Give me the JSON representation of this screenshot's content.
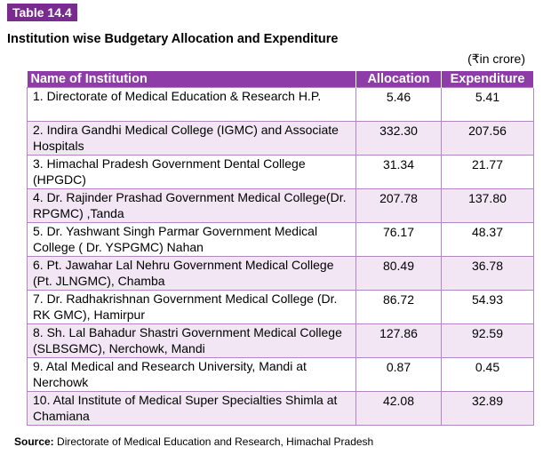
{
  "tag": "Table 14.4",
  "title": "Institution wise Budgetary Allocation and Expenditure",
  "unit": "(₹in crore)",
  "headers": [
    "Name of Institution",
    "Allocation",
    "Expenditure"
  ],
  "rows": [
    {
      "name": "1. Directorate of Medical Education & Research H.P.",
      "allocation": "5.46",
      "expenditure": "5.41"
    },
    {
      "name": "2. Indira Gandhi Medical College (IGMC) and Associate Hospitals",
      "allocation": "332.30",
      "expenditure": "207.56"
    },
    {
      "name": "3. Himachal Pradesh Government Dental College (HPGDC)",
      "allocation": "31.34",
      "expenditure": "21.77"
    },
    {
      "name": "4. Dr. Rajinder Prashad Government Medical College(Dr. RPGMC) ,Tanda",
      "allocation": "207.78",
      "expenditure": "137.80"
    },
    {
      "name": "5. Dr. Yashwant Singh Parmar Government Medical College ( Dr. YSPGMC) Nahan",
      "allocation": "76.17",
      "expenditure": "48.37"
    },
    {
      "name": "6. Pt. Jawahar Lal Nehru Government Medical College (Pt. JLNGMC), Chamba",
      "allocation": "80.49",
      "expenditure": "36.78"
    },
    {
      "name": "7. Dr. Radhakrishnan Government Medical College (Dr. RK GMC), Hamirpur",
      "allocation": "86.72",
      "expenditure": "54.93"
    },
    {
      "name": "8. Sh. Lal Bahadur Shastri Government Medical College (SLBSGMC), Nerchowk, Mandi",
      "allocation": "127.86",
      "expenditure": "92.59"
    },
    {
      "name": "9. Atal Medical and Research University, Mandi at Nerchowk",
      "allocation": "0.87",
      "expenditure": "0.45"
    },
    {
      "name": "10. Atal Institute of Medical Super Specialties Shimla at Chamiana",
      "allocation": "42.08",
      "expenditure": "32.89"
    }
  ],
  "source_label": "Source:",
  "source_text": "Directorate of Medical Education and Research, Himachal Pradesh"
}
